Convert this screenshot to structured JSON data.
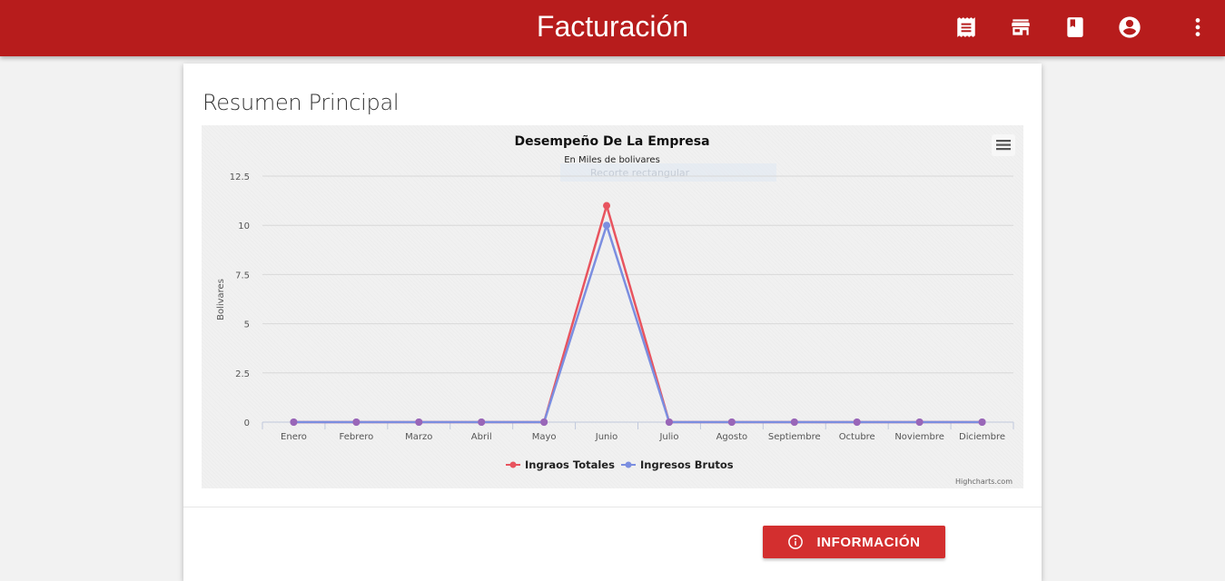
{
  "app": {
    "title": "Facturación",
    "toolbar_icons": [
      "receipt-icon",
      "store-icon",
      "book-icon",
      "account-circle-icon",
      "more-vert-icon"
    ]
  },
  "card": {
    "title": "Resumen Principal",
    "info_button_label": "INFORMACIÓN"
  },
  "chart_data": {
    "type": "line",
    "title": "Desempeño De La Empresa",
    "subtitle": "En Miles de bolivares",
    "ylabel": "Bolivares",
    "xlabel": "",
    "categories": [
      "Enero",
      "Febrero",
      "Marzo",
      "Abril",
      "Mayo",
      "Junio",
      "Julio",
      "Agosto",
      "Septiembre",
      "Octubre",
      "Noviembre",
      "Diciembre"
    ],
    "ylim": [
      0,
      12.5
    ],
    "yticks": [
      "0",
      "2.5",
      "5",
      "7.5",
      "10",
      "12.5"
    ],
    "series": [
      {
        "name": "Ingraos Totales",
        "color": "#e8545f",
        "values": [
          0,
          0,
          0,
          0,
          0,
          11,
          0,
          0,
          0,
          0,
          0,
          0
        ]
      },
      {
        "name": "Ingresos Brutos",
        "color": "#7b8ee0",
        "values": [
          0,
          0,
          0,
          0,
          0,
          10,
          0,
          0,
          0,
          0,
          0,
          0
        ]
      }
    ],
    "legend": "bottom-center",
    "grid": true,
    "credits": "Highcharts.com",
    "menu_icon": "hamburger-menu-icon",
    "overlay_hint": "Recorte rectangular"
  }
}
